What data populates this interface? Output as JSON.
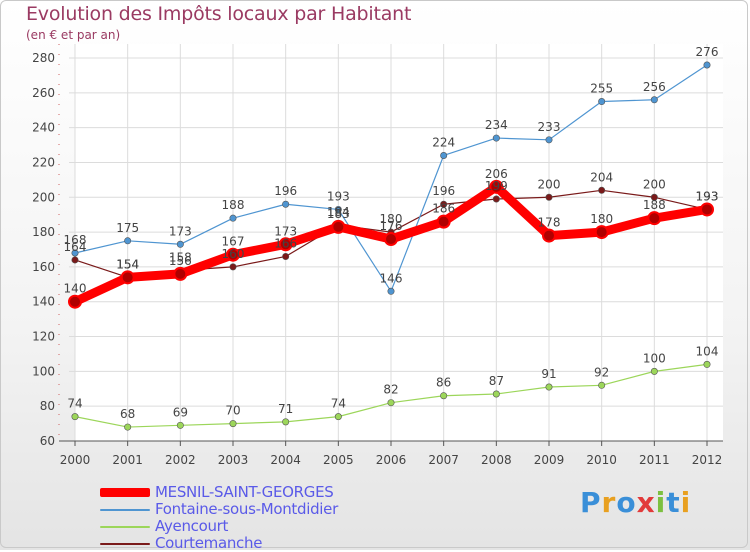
{
  "header": {
    "title": "Evolution des Impôts locaux par Habitant",
    "subtitle": "(en € et par an)"
  },
  "logo": {
    "letters": [
      "P",
      "r",
      "o",
      "x",
      "i",
      "t",
      "i"
    ],
    "colors": [
      "#3a8fd8",
      "#e8a020",
      "#3a8fd8",
      "#e23a3a",
      "#7cc040",
      "#3a8fd8",
      "#e8a020"
    ]
  },
  "chart_data": {
    "type": "line",
    "title": "Evolution des Impôts locaux par Habitant",
    "subtitle": "(en € et par an)",
    "xlabel": "",
    "ylabel": "",
    "x": [
      2000,
      2001,
      2002,
      2003,
      2004,
      2005,
      2006,
      2007,
      2008,
      2009,
      2010,
      2011,
      2012
    ],
    "ylim": [
      60,
      280
    ],
    "yticks": [
      60,
      80,
      100,
      120,
      140,
      160,
      180,
      200,
      220,
      240,
      260,
      280
    ],
    "grid": true,
    "legend_placement": "bottom-left",
    "series": [
      {
        "name": "MESNIL-SAINT-GEORGES",
        "color": "#ff0000",
        "values": [
          140,
          154,
          156,
          167,
          173,
          183,
          176,
          186,
          206,
          178,
          180,
          188,
          193
        ],
        "labels": [
          "140",
          "154",
          "156",
          "167",
          "173",
          "183",
          "176",
          "186",
          "206",
          "178",
          "180",
          "188",
          "193"
        ]
      },
      {
        "name": "Fontaine-sous-Montdidier",
        "color": "#4f95d1",
        "values": [
          168,
          175,
          173,
          188,
          196,
          193,
          146,
          224,
          234,
          233,
          255,
          256,
          276
        ],
        "labels": [
          "168",
          "175",
          "173",
          "188",
          "196",
          "193",
          "146",
          "224",
          "234",
          "233",
          "255",
          "256",
          "276"
        ]
      },
      {
        "name": "Ayencourt",
        "color": "#9cd65a",
        "values": [
          74,
          68,
          69,
          70,
          71,
          74,
          82,
          86,
          87,
          91,
          92,
          100,
          104
        ],
        "labels": [
          "74",
          "68",
          "69",
          "70",
          "71",
          "74",
          "82",
          "86",
          "87",
          "91",
          "92",
          "100",
          "104"
        ]
      },
      {
        "name": "Courtemanche",
        "color": "#7a1a1a",
        "values": [
          164,
          154,
          158,
          160,
          166,
          184,
          180,
          196,
          199,
          200,
          204,
          200,
          193
        ],
        "labels": [
          "164",
          "154",
          "158",
          "160",
          "166",
          "184",
          "180",
          "196",
          "199",
          "200",
          "204",
          "200",
          "193"
        ]
      }
    ]
  }
}
